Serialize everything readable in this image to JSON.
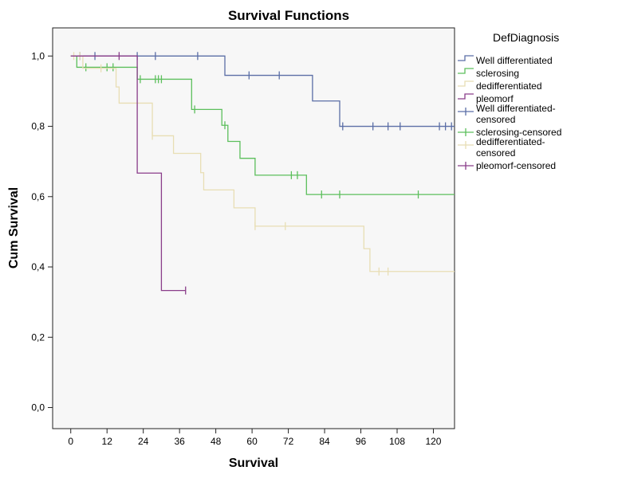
{
  "chart_data": {
    "type": "line",
    "title": "Survival Functions",
    "xlabel": "Survival",
    "ylabel": "Cum Survival",
    "xlim": [
      -6,
      127
    ],
    "ylim": [
      -0.06,
      1.08
    ],
    "x_ticks": [
      0,
      12,
      24,
      36,
      48,
      60,
      72,
      84,
      96,
      108,
      120
    ],
    "x_tick_labels": [
      "0",
      "12",
      "24",
      "36",
      "48",
      "60",
      "72",
      "84",
      "96",
      "108",
      "120"
    ],
    "y_ticks": [
      0.0,
      0.2,
      0.4,
      0.6,
      0.8,
      1.0
    ],
    "y_tick_labels": [
      "0,0",
      "0,2",
      "0,4",
      "0,6",
      "0,8",
      "1,0"
    ],
    "grid": false,
    "legend_title": "DefDiagnosis",
    "legend_position": "right",
    "background_color": "#f7f7f7",
    "series": [
      {
        "name": "Well differentiated",
        "censored_name": "Well differentiated-censored",
        "color": "#5b6ea6",
        "steps": [
          [
            0,
            1.0
          ],
          [
            51,
            0.945
          ],
          [
            80,
            0.872
          ],
          [
            89,
            0.8
          ],
          [
            127,
            0.8
          ]
        ],
        "censored": [
          [
            3,
            1.0
          ],
          [
            8,
            1.0
          ],
          [
            22,
            1.0
          ],
          [
            28,
            1.0
          ],
          [
            42,
            1.0
          ],
          [
            59,
            0.945
          ],
          [
            69,
            0.945
          ],
          [
            90,
            0.8
          ],
          [
            100,
            0.8
          ],
          [
            105,
            0.8
          ],
          [
            109,
            0.8
          ],
          [
            122,
            0.8
          ],
          [
            124,
            0.8
          ],
          [
            126,
            0.8
          ]
        ]
      },
      {
        "name": "sclerosing",
        "censored_name": "sclerosing-censored",
        "color": "#5cbf5c",
        "steps": [
          [
            0,
            1.0
          ],
          [
            2,
            0.968
          ],
          [
            22,
            0.934
          ],
          [
            40,
            0.848
          ],
          [
            50,
            0.803
          ],
          [
            52,
            0.757
          ],
          [
            56,
            0.709
          ],
          [
            61,
            0.661
          ],
          [
            78,
            0.606
          ],
          [
            127,
            0.606
          ]
        ],
        "censored": [
          [
            5,
            0.968
          ],
          [
            12,
            0.968
          ],
          [
            14,
            0.968
          ],
          [
            23,
            0.934
          ],
          [
            28,
            0.934
          ],
          [
            29,
            0.934
          ],
          [
            30,
            0.934
          ],
          [
            41,
            0.848
          ],
          [
            51,
            0.803
          ],
          [
            73,
            0.661
          ],
          [
            75,
            0.661
          ],
          [
            83,
            0.606
          ],
          [
            89,
            0.606
          ],
          [
            115,
            0.606
          ]
        ]
      },
      {
        "name": "dedifferentiated",
        "censored_name": "dedifferentiated-censored",
        "color": "#e8deb4",
        "steps": [
          [
            0,
            1.0
          ],
          [
            4,
            0.965
          ],
          [
            15,
            0.912
          ],
          [
            16,
            0.866
          ],
          [
            27,
            0.773
          ],
          [
            34,
            0.723
          ],
          [
            43,
            0.668
          ],
          [
            44,
            0.619
          ],
          [
            54,
            0.568
          ],
          [
            61,
            0.516
          ],
          [
            97,
            0.452
          ],
          [
            99,
            0.387
          ],
          [
            127,
            0.387
          ]
        ],
        "censored": [
          [
            1,
            1.0
          ],
          [
            3,
            1.0
          ],
          [
            10,
            0.965
          ],
          [
            27,
            0.773
          ],
          [
            61,
            0.516
          ],
          [
            71,
            0.516
          ],
          [
            102,
            0.387
          ],
          [
            105,
            0.387
          ]
        ]
      },
      {
        "name": "pleomorf",
        "censored_name": "pleomorf-censored",
        "color": "#8a3d8a",
        "steps": [
          [
            0,
            1.0
          ],
          [
            22,
            0.667
          ],
          [
            30,
            0.333
          ],
          [
            38,
            0.333
          ]
        ],
        "censored": [
          [
            16,
            1.0
          ],
          [
            38,
            0.333
          ]
        ]
      }
    ]
  }
}
